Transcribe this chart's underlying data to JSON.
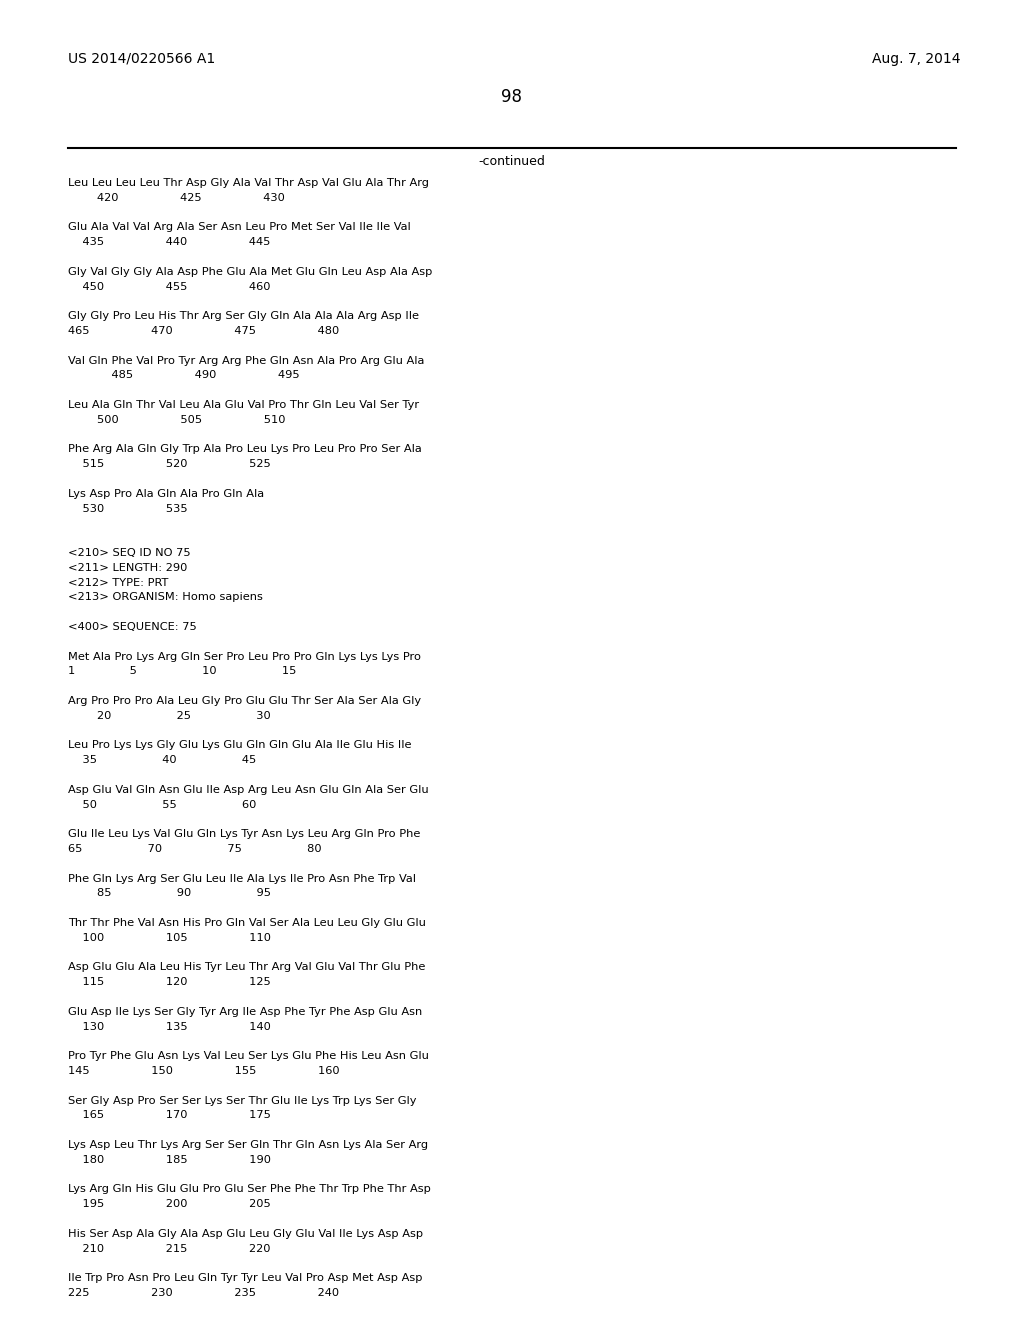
{
  "header_left": "US 2014/0220566 A1",
  "header_right": "Aug. 7, 2014",
  "page_number": "98",
  "continued_label": "-continued",
  "background_color": "#ffffff",
  "text_color": "#000000",
  "content_lines": [
    "Leu Leu Leu Leu Thr Asp Gly Ala Val Thr Asp Val Glu Ala Thr Arg",
    "        420                 425                 430",
    "",
    "Glu Ala Val Val Arg Ala Ser Asn Leu Pro Met Ser Val Ile Ile Val",
    "    435                 440                 445",
    "",
    "Gly Val Gly Gly Ala Asp Phe Glu Ala Met Glu Gln Leu Asp Ala Asp",
    "    450                 455                 460",
    "",
    "Gly Gly Pro Leu His Thr Arg Ser Gly Gln Ala Ala Ala Arg Asp Ile",
    "465                 470                 475                 480",
    "",
    "Val Gln Phe Val Pro Tyr Arg Arg Phe Gln Asn Ala Pro Arg Glu Ala",
    "            485                 490                 495",
    "",
    "Leu Ala Gln Thr Val Leu Ala Glu Val Pro Thr Gln Leu Val Ser Tyr",
    "        500                 505                 510",
    "",
    "Phe Arg Ala Gln Gly Trp Ala Pro Leu Lys Pro Leu Pro Pro Ser Ala",
    "    515                 520                 525",
    "",
    "Lys Asp Pro Ala Gln Ala Pro Gln Ala",
    "    530                 535",
    "",
    "",
    "<210> SEQ ID NO 75",
    "<211> LENGTH: 290",
    "<212> TYPE: PRT",
    "<213> ORGANISM: Homo sapiens",
    "",
    "<400> SEQUENCE: 75",
    "",
    "Met Ala Pro Lys Arg Gln Ser Pro Leu Pro Pro Gln Lys Lys Lys Pro",
    "1               5                  10                  15",
    "",
    "Arg Pro Pro Pro Ala Leu Gly Pro Glu Glu Thr Ser Ala Ser Ala Gly",
    "        20                  25                  30",
    "",
    "Leu Pro Lys Lys Gly Glu Lys Glu Gln Gln Glu Ala Ile Glu His Ile",
    "    35                  40                  45",
    "",
    "Asp Glu Val Gln Asn Glu Ile Asp Arg Leu Asn Glu Gln Ala Ser Glu",
    "    50                  55                  60",
    "",
    "Glu Ile Leu Lys Val Glu Gln Lys Tyr Asn Lys Leu Arg Gln Pro Phe",
    "65                  70                  75                  80",
    "",
    "Phe Gln Lys Arg Ser Glu Leu Ile Ala Lys Ile Pro Asn Phe Trp Val",
    "        85                  90                  95",
    "",
    "Thr Thr Phe Val Asn His Pro Gln Val Ser Ala Leu Leu Gly Glu Glu",
    "    100                 105                 110",
    "",
    "Asp Glu Glu Ala Leu His Tyr Leu Thr Arg Val Glu Val Thr Glu Phe",
    "    115                 120                 125",
    "",
    "Glu Asp Ile Lys Ser Gly Tyr Arg Ile Asp Phe Tyr Phe Asp Glu Asn",
    "    130                 135                 140",
    "",
    "Pro Tyr Phe Glu Asn Lys Val Leu Ser Lys Glu Phe His Leu Asn Glu",
    "145                 150                 155                 160",
    "",
    "Ser Gly Asp Pro Ser Ser Lys Ser Thr Glu Ile Lys Trp Lys Ser Gly",
    "    165                 170                 175",
    "",
    "Lys Asp Leu Thr Lys Arg Ser Ser Gln Thr Gln Asn Lys Ala Ser Arg",
    "    180                 185                 190",
    "",
    "Lys Arg Gln His Glu Glu Pro Glu Ser Phe Phe Thr Trp Phe Thr Asp",
    "    195                 200                 205",
    "",
    "His Ser Asp Ala Gly Ala Asp Glu Leu Gly Glu Val Ile Lys Asp Asp",
    "    210                 215                 220",
    "",
    "Ile Trp Pro Asn Pro Leu Gln Tyr Tyr Leu Val Pro Asp Met Asp Asp",
    "225                 230                 235                 240"
  ]
}
